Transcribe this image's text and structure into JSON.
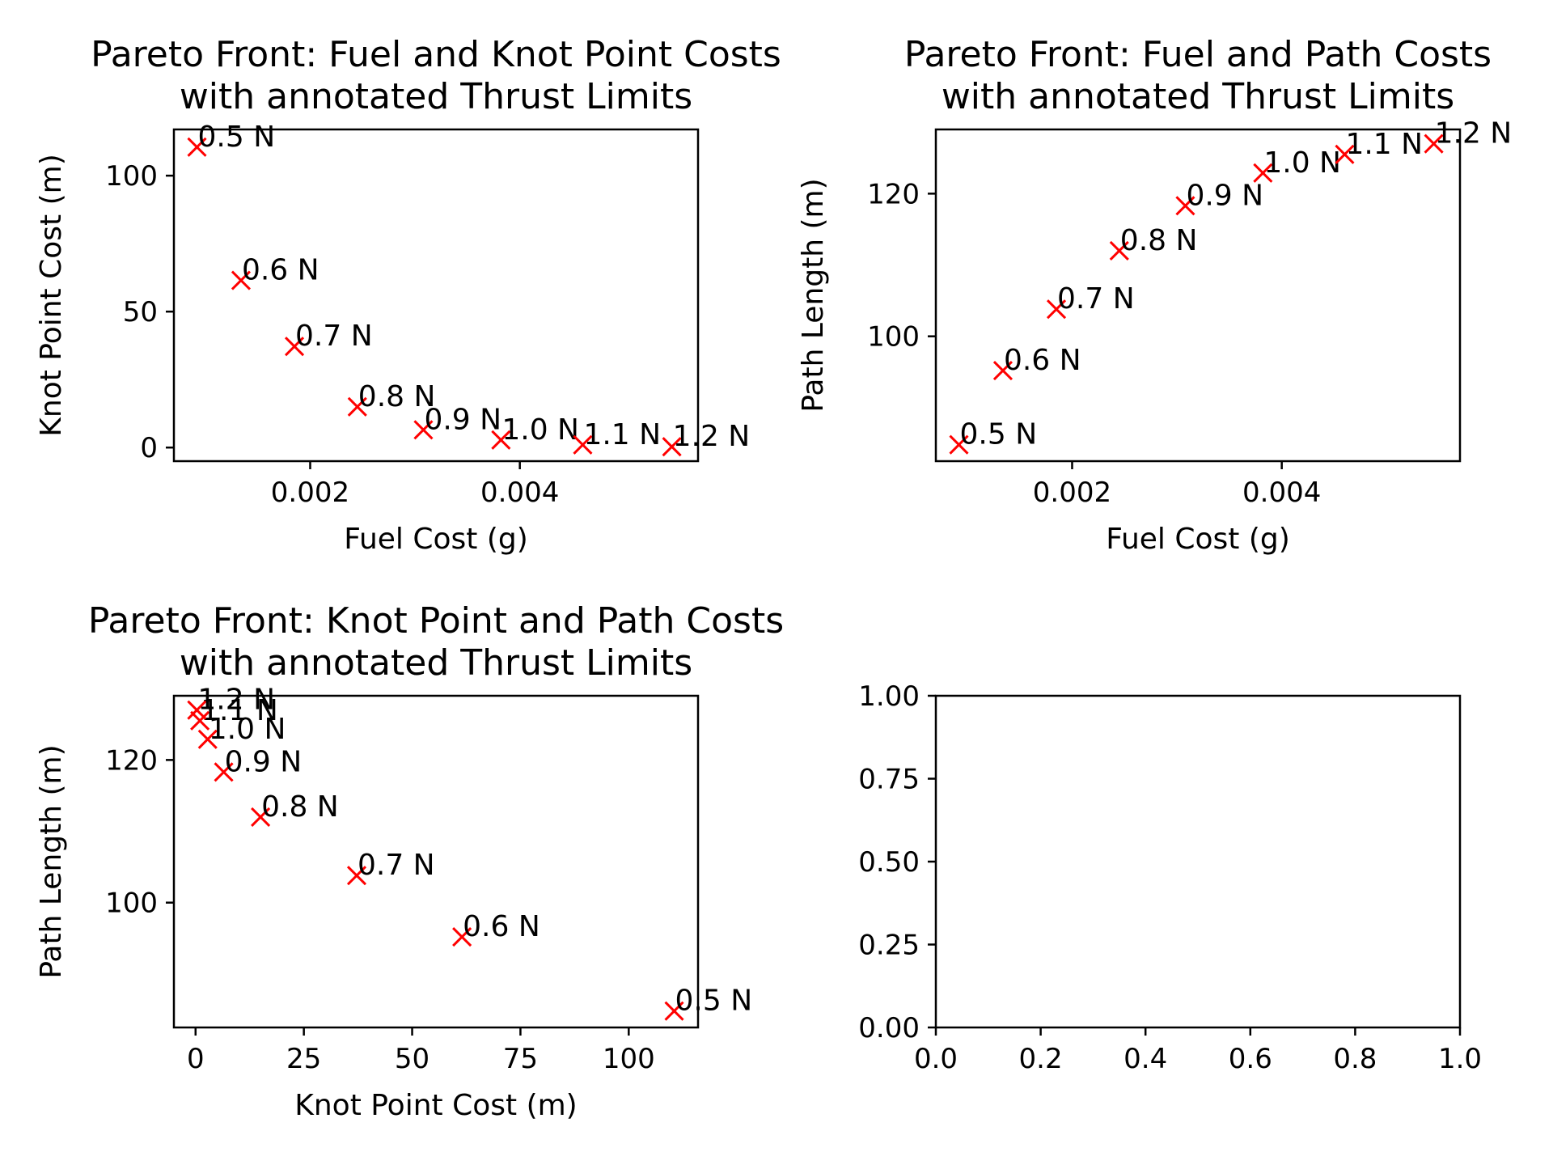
{
  "figure": {
    "background": "#ffffff"
  },
  "chart_data": [
    {
      "type": "scatter",
      "title_lines": [
        "Pareto Front: Fuel and Knot Point Costs",
        "with annotated Thrust Limits"
      ],
      "xlabel": "Fuel Cost (g)",
      "ylabel": "Knot Point Cost (m)",
      "xlim": [
        0.0007,
        0.0057
      ],
      "ylim": [
        -5,
        117
      ],
      "xticks": [
        {
          "v": 0.002,
          "label": "0.002"
        },
        {
          "v": 0.004,
          "label": "0.004"
        }
      ],
      "yticks": [
        {
          "v": 0,
          "label": "0"
        },
        {
          "v": 50,
          "label": "50"
        },
        {
          "v": 100,
          "label": "100"
        }
      ],
      "marker": "x",
      "color": "#ff0000",
      "grid": false,
      "points": [
        {
          "x": 0.00092,
          "y": 110.5,
          "label": "0.5 N"
        },
        {
          "x": 0.00134,
          "y": 61.5,
          "label": "0.6 N"
        },
        {
          "x": 0.00185,
          "y": 37.2,
          "label": "0.7 N"
        },
        {
          "x": 0.00245,
          "y": 15.0,
          "label": "0.8 N"
        },
        {
          "x": 0.00308,
          "y": 6.5,
          "label": "0.9 N"
        },
        {
          "x": 0.00382,
          "y": 2.8,
          "label": "1.0 N"
        },
        {
          "x": 0.0046,
          "y": 1.0,
          "label": "1.1 N"
        },
        {
          "x": 0.00545,
          "y": 0.3,
          "label": "1.2 N"
        }
      ]
    },
    {
      "type": "scatter",
      "title_lines": [
        "Pareto Front: Fuel and Path Costs",
        "with annotated Thrust Limits"
      ],
      "xlabel": "Fuel Cost (g)",
      "ylabel": "Path Length (m)",
      "xlim": [
        0.0007,
        0.0057
      ],
      "ylim": [
        82.5,
        129
      ],
      "xticks": [
        {
          "v": 0.002,
          "label": "0.002"
        },
        {
          "v": 0.004,
          "label": "0.004"
        }
      ],
      "yticks": [
        {
          "v": 100,
          "label": "100"
        },
        {
          "v": 120,
          "label": "120"
        }
      ],
      "marker": "x",
      "color": "#ff0000",
      "grid": false,
      "points": [
        {
          "x": 0.00092,
          "y": 84.8,
          "label": "0.5 N"
        },
        {
          "x": 0.00134,
          "y": 95.2,
          "label": "0.6 N"
        },
        {
          "x": 0.00185,
          "y": 103.8,
          "label": "0.7 N"
        },
        {
          "x": 0.00245,
          "y": 112.0,
          "label": "0.8 N"
        },
        {
          "x": 0.00308,
          "y": 118.3,
          "label": "0.9 N"
        },
        {
          "x": 0.00382,
          "y": 122.9,
          "label": "1.0 N"
        },
        {
          "x": 0.0046,
          "y": 125.5,
          "label": "1.1 N"
        },
        {
          "x": 0.00545,
          "y": 127.0,
          "label": "1.2 N"
        }
      ]
    },
    {
      "type": "scatter",
      "title_lines": [
        "Pareto Front: Knot Point and Path Costs",
        "with annotated Thrust Limits"
      ],
      "xlabel": "Knot Point Cost (m)",
      "ylabel": "Path Length (m)",
      "xlim": [
        -5,
        116
      ],
      "ylim": [
        82.5,
        129
      ],
      "xticks": [
        {
          "v": 0,
          "label": "0"
        },
        {
          "v": 25,
          "label": "25"
        },
        {
          "v": 50,
          "label": "50"
        },
        {
          "v": 75,
          "label": "75"
        },
        {
          "v": 100,
          "label": "100"
        }
      ],
      "yticks": [
        {
          "v": 100,
          "label": "100"
        },
        {
          "v": 120,
          "label": "120"
        }
      ],
      "marker": "x",
      "color": "#ff0000",
      "grid": false,
      "points": [
        {
          "x": 110.5,
          "y": 84.8,
          "label": "0.5 N"
        },
        {
          "x": 61.5,
          "y": 95.2,
          "label": "0.6 N"
        },
        {
          "x": 37.2,
          "y": 103.8,
          "label": "0.7 N"
        },
        {
          "x": 15.0,
          "y": 112.0,
          "label": "0.8 N"
        },
        {
          "x": 6.5,
          "y": 118.3,
          "label": "0.9 N"
        },
        {
          "x": 2.8,
          "y": 122.9,
          "label": "1.0 N"
        },
        {
          "x": 1.0,
          "y": 125.5,
          "label": "1.1 N"
        },
        {
          "x": 0.3,
          "y": 127.0,
          "label": "1.2 N"
        }
      ]
    },
    {
      "type": "scatter",
      "title_lines": [],
      "xlabel": "",
      "ylabel": "",
      "xlim": [
        0,
        1
      ],
      "ylim": [
        0,
        1
      ],
      "xticks": [
        {
          "v": 0,
          "label": "0.0"
        },
        {
          "v": 0.2,
          "label": "0.2"
        },
        {
          "v": 0.4,
          "label": "0.4"
        },
        {
          "v": 0.6,
          "label": "0.6"
        },
        {
          "v": 0.8,
          "label": "0.8"
        },
        {
          "v": 1.0,
          "label": "1.0"
        }
      ],
      "yticks": [
        {
          "v": 0,
          "label": "0.00"
        },
        {
          "v": 0.25,
          "label": "0.25"
        },
        {
          "v": 0.5,
          "label": "0.50"
        },
        {
          "v": 0.75,
          "label": "0.75"
        },
        {
          "v": 1.0,
          "label": "1.00"
        }
      ],
      "marker": "x",
      "color": "#ff0000",
      "grid": false,
      "points": []
    }
  ]
}
